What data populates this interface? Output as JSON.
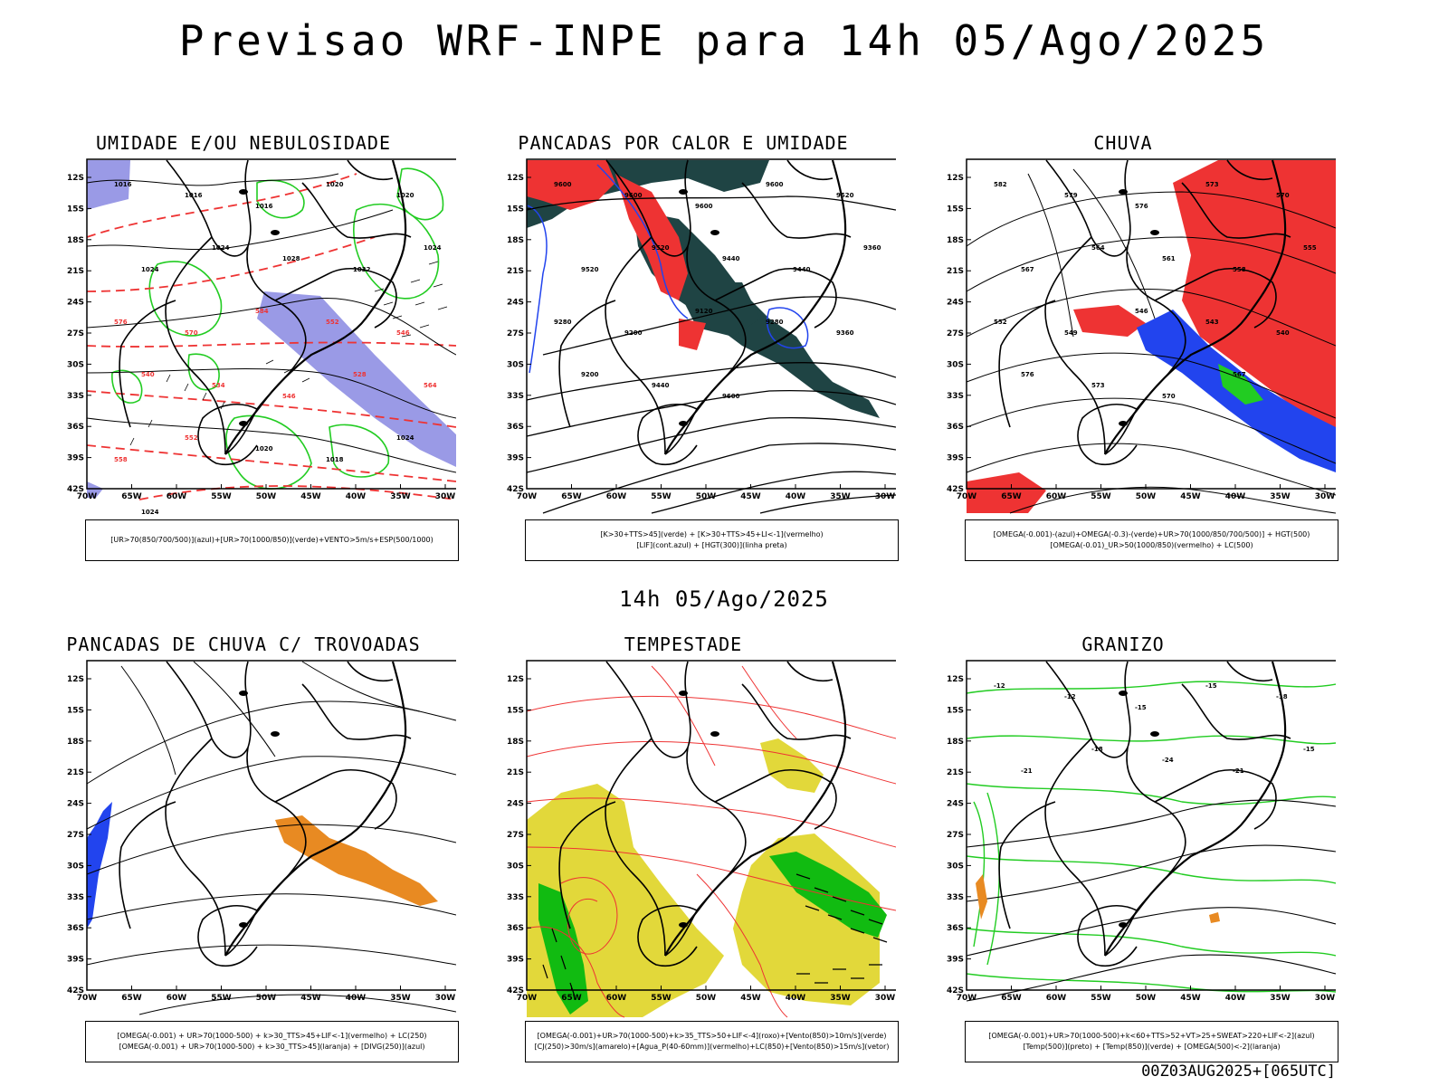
{
  "header": {
    "title": "Previsao WRF-INPE  para 14h 05/Ago/2025"
  },
  "mid_title": "14h 05/Ago/2025",
  "footer": "00Z03AUG2025+[065UTC]",
  "axes": {
    "lat_labels": [
      "12S",
      "15S",
      "18S",
      "21S",
      "24S",
      "27S",
      "30S",
      "33S",
      "36S",
      "39S",
      "42S"
    ],
    "lon_labels": [
      "70W",
      "65W",
      "60W",
      "55W",
      "50W",
      "45W",
      "40W",
      "35W",
      "30W"
    ]
  },
  "colors": {
    "blue_shade": "#9a9ae6",
    "green": "#22cc22",
    "red": "#ee3333",
    "dark_teal": "#1f4444",
    "blue": "#2244ee",
    "orange": "#e88a22",
    "yellow": "#e2d83a",
    "lime": "#11bb11"
  },
  "panels": [
    {
      "id": "umidade",
      "title": "UMIDADE E/OU NEBULOSIDADE",
      "legend": [
        "[UR>70(850/700/500)](azul)+[UR>70(1000/850)](verde)+VENTO>5m/s+ESP(500/1000)"
      ],
      "contour_labels": [
        "1016",
        "1016",
        "1016",
        "1020",
        "1020",
        "1024",
        "1024",
        "1028",
        "1032",
        "1024",
        "576",
        "570",
        "584",
        "552",
        "546",
        "540",
        "534",
        "546",
        "528",
        "564",
        "558",
        "552",
        "1020",
        "1018",
        "1024",
        "1024"
      ]
    },
    {
      "id": "pancadas",
      "title": "PANCADAS POR CALOR E UMIDADE",
      "legend": [
        "[K>30+TTS>45](verde) + [K>30+TTS>45+LI<-1](vermelho)",
        "[LIF](cont.azul) + [HGT(300)](linha preta)"
      ],
      "contour_labels": [
        "9600",
        "9600",
        "9600",
        "9600",
        "9520",
        "9520",
        "9520",
        "9440",
        "9440",
        "9360",
        "9280",
        "9200",
        "9120",
        "9280",
        "9360",
        "9200",
        "9440",
        "9600"
      ]
    },
    {
      "id": "chuva",
      "title": "CHUVA",
      "legend": [
        "[OMEGA(-0.001)-(azul)+OMEGA(-0.3)-(verde)+UR>70(1000/850/700/500)] + HGT(500)",
        "[OMEGA(-0.01)_UR>50(1000/850)(vermelho) + LC(500)"
      ],
      "contour_labels": [
        "582",
        "579",
        "576",
        "573",
        "570",
        "567",
        "564",
        "561",
        "558",
        "555",
        "552",
        "549",
        "546",
        "543",
        "540",
        "576",
        "573",
        "570",
        "567"
      ]
    },
    {
      "id": "trovoadas",
      "title": "PANCADAS DE CHUVA C/ TROVOADAS",
      "legend": [
        "[OMEGA(-0.001) + UR>70(1000-500) + k>30_TTS>45+LIF<-1](vermelho) + LC(250)",
        "[OMEGA(-0.001) + UR>70(1000-500) + k>30_TTS>45](laranja) + [DIVG(250)](azul)"
      ],
      "contour_labels": []
    },
    {
      "id": "tempestade",
      "title": "TEMPESTADE",
      "legend": [
        "[OMEGA(-0.001)+UR>70(1000-500)+k>35_TTS>50+LIF<-4](roxo)+[Vento(850)>10m/s](verde)",
        "[CJ(250)>30m/s](amarelo)+[Agua_P(40-60mm)](vermelho)+LC(850)+[Vento(850)>15m/s](vetor)"
      ],
      "contour_labels": []
    },
    {
      "id": "granizo",
      "title": "GRANIZO",
      "legend": [
        "[OMEGA(-0.001)+UR>70(1000-500)+k<60+TTS>52+VT>25+SWEAT>220+LIF<-2](azul)",
        "[Temp(500)](preto) + [Temp(850)](verde) + [OMEGA(500)<-2](laranja)"
      ],
      "contour_labels": [
        "-12",
        "-12",
        "-15",
        "-15",
        "-18",
        "-21",
        "-18",
        "-24",
        "-21",
        "-15"
      ]
    }
  ]
}
